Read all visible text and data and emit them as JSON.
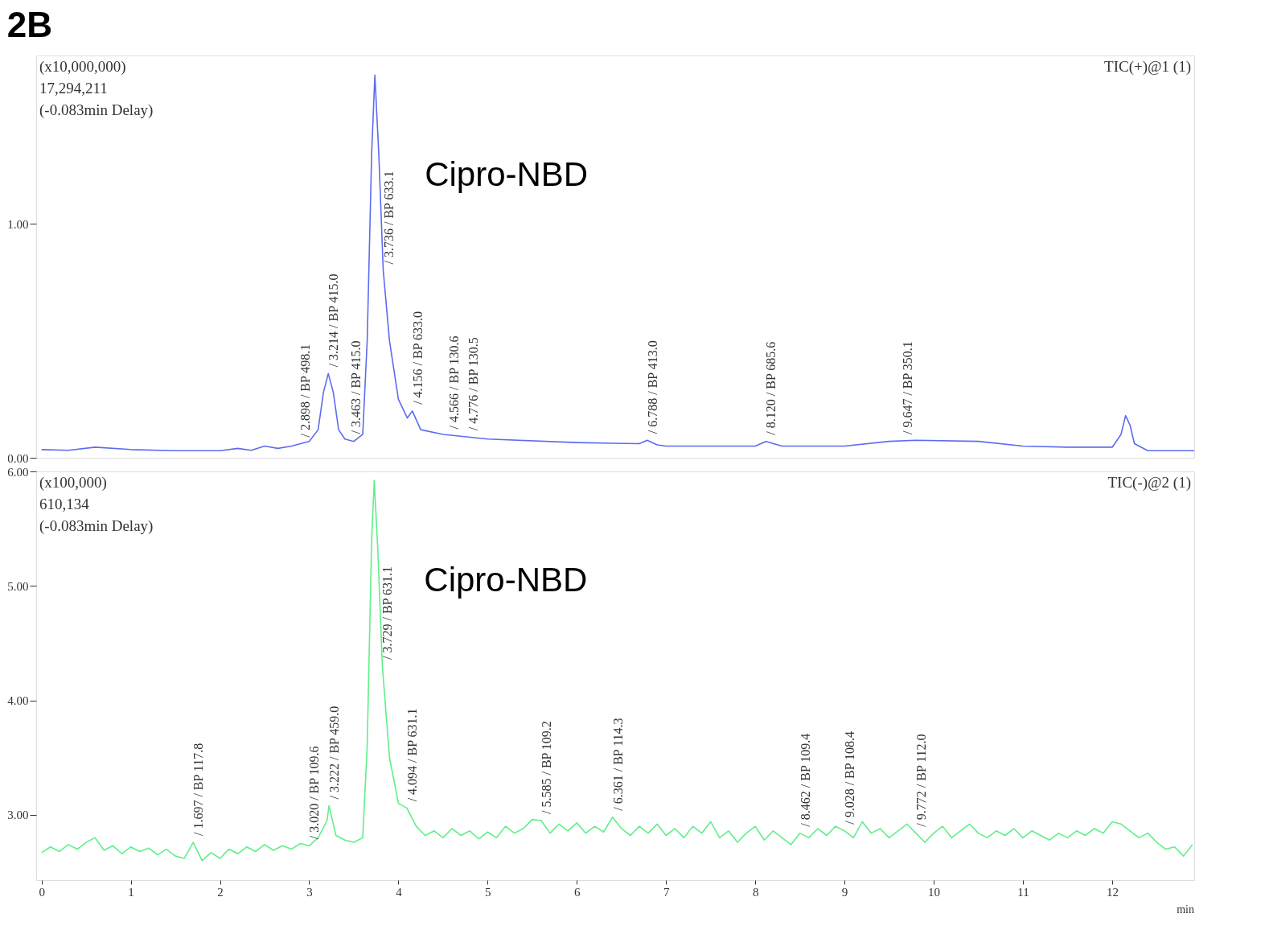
{
  "chart_data": [
    {
      "type": "line",
      "title": "2B",
      "xlim": [
        -0.06,
        12.92
      ],
      "xticks": [
        0,
        1,
        2,
        3,
        4,
        5,
        6,
        7,
        8,
        9,
        10,
        11,
        12
      ],
      "ylim": [
        0,
        1.72
      ],
      "yticks": [
        {
          "value": 0,
          "label": "0.00"
        },
        {
          "value": 1,
          "label": "1.00"
        }
      ],
      "tick_labels": "y",
      "series": [
        {
          "color": "#5b6cf0",
          "x": [
            0,
            0.3,
            0.6,
            1.0,
            1.5,
            2.0,
            2.2,
            2.35,
            2.5,
            2.65,
            2.8,
            3.0,
            3.1,
            3.16,
            3.214,
            3.27,
            3.33,
            3.4,
            3.5,
            3.6,
            3.65,
            3.7,
            3.736,
            3.78,
            3.83,
            3.9,
            4.0,
            4.1,
            4.156,
            4.25,
            4.5,
            5.0,
            6.0,
            6.7,
            6.788,
            6.9,
            7.0,
            8.0,
            8.12,
            8.3,
            9.0,
            9.5,
            9.8,
            10.5,
            11.0,
            11.5,
            12.0,
            12.1,
            12.15,
            12.2,
            12.25,
            12.4,
            12.92
          ],
          "values": [
            0.035,
            0.032,
            0.045,
            0.035,
            0.03,
            0.03,
            0.04,
            0.032,
            0.05,
            0.04,
            0.05,
            0.07,
            0.12,
            0.28,
            0.36,
            0.28,
            0.12,
            0.08,
            0.07,
            0.1,
            0.5,
            1.3,
            1.636,
            1.3,
            0.8,
            0.5,
            0.25,
            0.17,
            0.2,
            0.12,
            0.1,
            0.08,
            0.065,
            0.06,
            0.075,
            0.055,
            0.05,
            0.05,
            0.07,
            0.05,
            0.05,
            0.07,
            0.075,
            0.07,
            0.05,
            0.045,
            0.045,
            0.1,
            0.18,
            0.14,
            0.06,
            0.03,
            0.03
          ]
        }
      ],
      "annotations": [
        "(x10,000,000)",
        "17,294,211",
        "(-0.083min Delay)",
        "TIC(+)@1 (1)",
        {
          "text": "/ 2.898 / BP 498.1",
          "x": 2.898,
          "y": 0.06
        },
        {
          "text": "/ 3.214 / BP 415.0",
          "x": 3.214,
          "y": 0.36
        },
        {
          "text": "/ 3.463 / BP 415.0",
          "x": 3.463,
          "y": 0.074
        },
        {
          "text": "/ 3.736 / BP 633.1",
          "x": 3.83,
          "y": 0.8
        },
        {
          "text": "/ 4.156 / BP 633.0",
          "x": 4.156,
          "y": 0.2
        },
        {
          "text": "/ 4.566 / BP 130.6",
          "x": 4.566,
          "y": 0.095
        },
        {
          "text": "/ 4.776 / BP 130.5",
          "x": 4.776,
          "y": 0.089
        },
        {
          "text": "/ 6.788 / BP 413.0",
          "x": 6.788,
          "y": 0.075
        },
        {
          "text": "/ 8.120 / BP 685.6",
          "x": 8.12,
          "y": 0.07
        },
        {
          "text": "/ 9.647 / BP 350.1",
          "x": 9.647,
          "y": 0.072
        },
        {
          "text": "Cipro-NBD",
          "x": 3.736,
          "y": 1.636
        }
      ]
    },
    {
      "type": "line",
      "xlabel": "min",
      "xlim": [
        -0.06,
        12.92
      ],
      "xticks": [
        0,
        1,
        2,
        3,
        4,
        5,
        6,
        7,
        8,
        9,
        10,
        11,
        12
      ],
      "ylim": [
        2.43,
        6.0
      ],
      "yticks": [
        {
          "value": 3,
          "label": "3.00"
        },
        {
          "value": 4,
          "label": "4.00"
        },
        {
          "value": 5,
          "label": "5.00"
        },
        {
          "value": 6,
          "label": "6.00"
        }
      ],
      "series": [
        {
          "color": "#5fef8a",
          "x": [
            0.0,
            0.1,
            0.2,
            0.3,
            0.4,
            0.5,
            0.6,
            0.7,
            0.8,
            0.9,
            1.0,
            1.1,
            1.2,
            1.3,
            1.4,
            1.5,
            1.6,
            1.7,
            1.8,
            1.9,
            2.0,
            2.1,
            2.2,
            2.3,
            2.4,
            2.5,
            2.6,
            2.7,
            2.8,
            2.9,
            3.0,
            3.1,
            3.2,
            3.222,
            3.3,
            3.4,
            3.5,
            3.6,
            3.65,
            3.7,
            3.729,
            3.77,
            3.82,
            3.9,
            4.0,
            4.094,
            4.2,
            4.3,
            4.4,
            4.5,
            4.6,
            4.7,
            4.8,
            4.9,
            5.0,
            5.1,
            5.2,
            5.3,
            5.4,
            5.5,
            5.6,
            5.7,
            5.8,
            5.9,
            6.0,
            6.1,
            6.2,
            6.3,
            6.4,
            6.5,
            6.6,
            6.7,
            6.8,
            6.9,
            7.0,
            7.1,
            7.2,
            7.3,
            7.4,
            7.5,
            7.6,
            7.7,
            7.8,
            7.9,
            8.0,
            8.1,
            8.2,
            8.3,
            8.4,
            8.5,
            8.6,
            8.7,
            8.8,
            8.9,
            9.0,
            9.1,
            9.2,
            9.3,
            9.4,
            9.5,
            9.6,
            9.7,
            9.8,
            9.9,
            10.0,
            10.1,
            10.2,
            10.3,
            10.4,
            10.5,
            10.6,
            10.7,
            10.8,
            10.9,
            11.0,
            11.1,
            11.2,
            11.3,
            11.4,
            11.5,
            11.6,
            11.7,
            11.8,
            11.9,
            12.0,
            12.1,
            12.2,
            12.3,
            12.4,
            12.5,
            12.6,
            12.7,
            12.8,
            12.9
          ],
          "values": [
            2.67,
            2.72,
            2.68,
            2.74,
            2.7,
            2.76,
            2.8,
            2.69,
            2.73,
            2.66,
            2.72,
            2.68,
            2.71,
            2.65,
            2.7,
            2.64,
            2.62,
            2.76,
            2.6,
            2.67,
            2.62,
            2.7,
            2.66,
            2.72,
            2.68,
            2.74,
            2.69,
            2.73,
            2.7,
            2.75,
            2.73,
            2.8,
            2.95,
            3.08,
            2.82,
            2.78,
            2.76,
            2.8,
            3.6,
            5.4,
            5.92,
            5.3,
            4.3,
            3.5,
            3.1,
            3.06,
            2.9,
            2.82,
            2.86,
            2.8,
            2.88,
            2.82,
            2.86,
            2.79,
            2.85,
            2.8,
            2.9,
            2.84,
            2.88,
            2.96,
            2.95,
            2.84,
            2.92,
            2.86,
            2.93,
            2.84,
            2.9,
            2.85,
            2.98,
            2.88,
            2.82,
            2.9,
            2.84,
            2.92,
            2.82,
            2.88,
            2.8,
            2.9,
            2.84,
            2.94,
            2.8,
            2.86,
            2.76,
            2.84,
            2.9,
            2.78,
            2.86,
            2.8,
            2.74,
            2.84,
            2.8,
            2.88,
            2.82,
            2.9,
            2.86,
            2.8,
            2.94,
            2.84,
            2.88,
            2.8,
            2.86,
            2.92,
            2.84,
            2.76,
            2.84,
            2.9,
            2.8,
            2.86,
            2.92,
            2.84,
            2.8,
            2.86,
            2.82,
            2.88,
            2.8,
            2.86,
            2.82,
            2.78,
            2.84,
            2.8,
            2.86,
            2.82,
            2.88,
            2.84,
            2.94,
            2.92,
            2.86,
            2.8,
            2.84,
            2.76,
            2.7,
            2.72,
            2.64,
            2.74
          ]
        }
      ],
      "annotations": [
        "(x100,000)",
        "610,134",
        "(-0.083min Delay)",
        "TIC(-)@2 (1)",
        {
          "text": "/ 1.697 / BP 117.8",
          "x": 1.7,
          "y": 2.76
        },
        {
          "text": "/ 3.020 / BP 109.6",
          "x": 3.0,
          "y": 2.73
        },
        {
          "text": "/ 3.222 / BP 459.0",
          "x": 3.222,
          "y": 3.08
        },
        {
          "text": "/ 3.729 / BP 631.1",
          "x": 3.82,
          "y": 4.3
        },
        {
          "text": "/ 4.094 / BP 631.1",
          "x": 4.094,
          "y": 3.06
        },
        {
          "text": "/ 5.585 / BP 109.2",
          "x": 5.6,
          "y": 2.95
        },
        {
          "text": "/ 6.361 / BP 114.3",
          "x": 6.4,
          "y": 2.98
        },
        {
          "text": "/ 8.462 / BP 109.4",
          "x": 8.5,
          "y": 2.84
        },
        {
          "text": "/ 9.028 / BP 108.4",
          "x": 9.0,
          "y": 2.86
        },
        {
          "text": "/ 9.772 / BP 112.0",
          "x": 9.8,
          "y": 2.84
        },
        {
          "text": "Cipro-NBD",
          "x": 3.729,
          "y": 5.92
        }
      ]
    }
  ]
}
